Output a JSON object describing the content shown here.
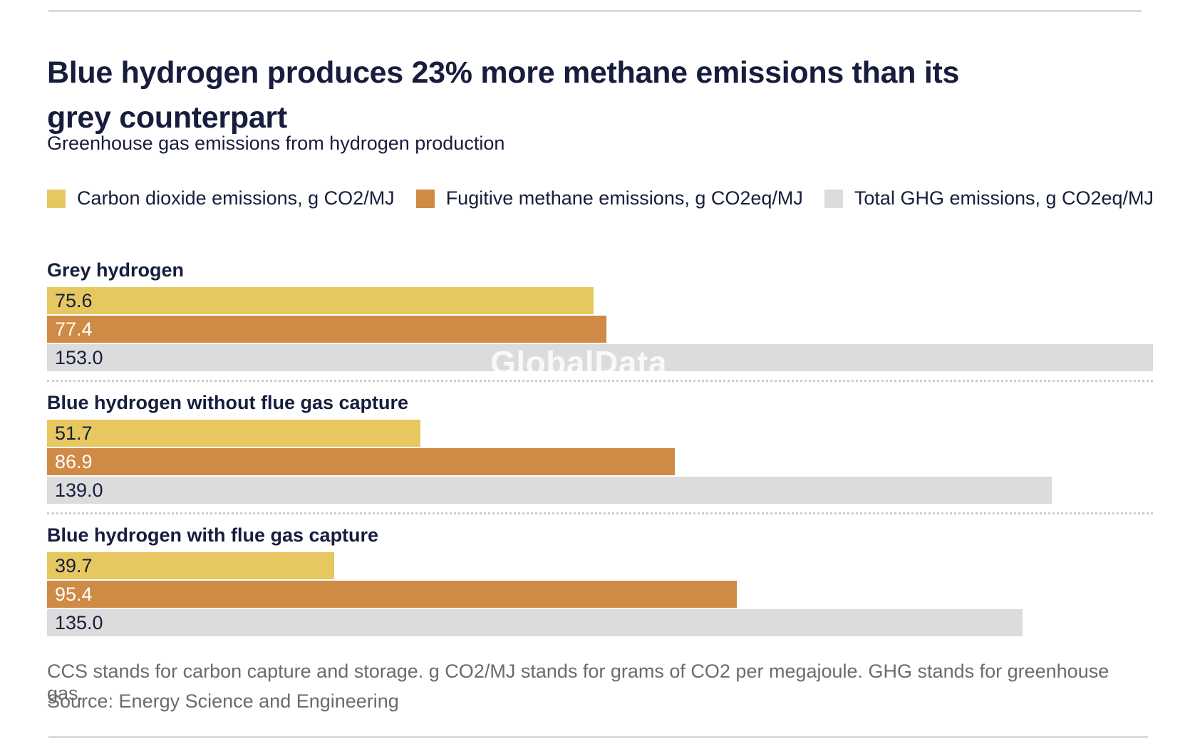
{
  "header": {
    "title_line1": "Blue hydrogen produces 23% more methane emissions than its",
    "title_line2": "grey counterpart",
    "subtitle": "Greenhouse gas emissions from hydrogen production"
  },
  "chart_data": {
    "type": "bar",
    "orientation": "horizontal",
    "title": "Blue hydrogen produces 23% more methane emissions than its grey counterpart",
    "subtitle": "Greenhouse gas emissions from hydrogen production",
    "xlabel": "",
    "ylabel": "",
    "xlim": [
      0,
      153
    ],
    "grid": false,
    "legend_position": "top",
    "value_labels": "inside-left",
    "categories": [
      "Grey hydrogen",
      "Blue hydrogen without flue gas capture",
      "Blue hydrogen with flue gas capture"
    ],
    "series": [
      {
        "name": "Carbon dioxide emissions, g CO2/MJ",
        "color": "#e7c860",
        "label_color": "#161d3d",
        "values": [
          75.6,
          51.7,
          39.7
        ]
      },
      {
        "name": "Fugitive methane emissions, g CO2eq/MJ",
        "color": "#cf8a45",
        "label_color": "#ffffff",
        "values": [
          77.4,
          86.9,
          95.4
        ]
      },
      {
        "name": "Total GHG emissions, g CO2eq/MJ",
        "color": "#dcdcdc",
        "label_color": "#161d3d",
        "values": [
          153.0,
          139.0,
          135.0
        ]
      }
    ]
  },
  "footer": {
    "note": "CCS stands for carbon capture and storage. g CO2/MJ stands for grams of CO2 per megajoule. GHG stands for greenhouse gas.",
    "source": "Source: Energy Science and Engineering"
  },
  "watermark": "GlobalData",
  "colors": {
    "title_text": "#161d3d",
    "muted_text": "#6b6b6b",
    "rule": "#dbdbdb",
    "separator": "#cccccc",
    "background": "#ffffff"
  }
}
